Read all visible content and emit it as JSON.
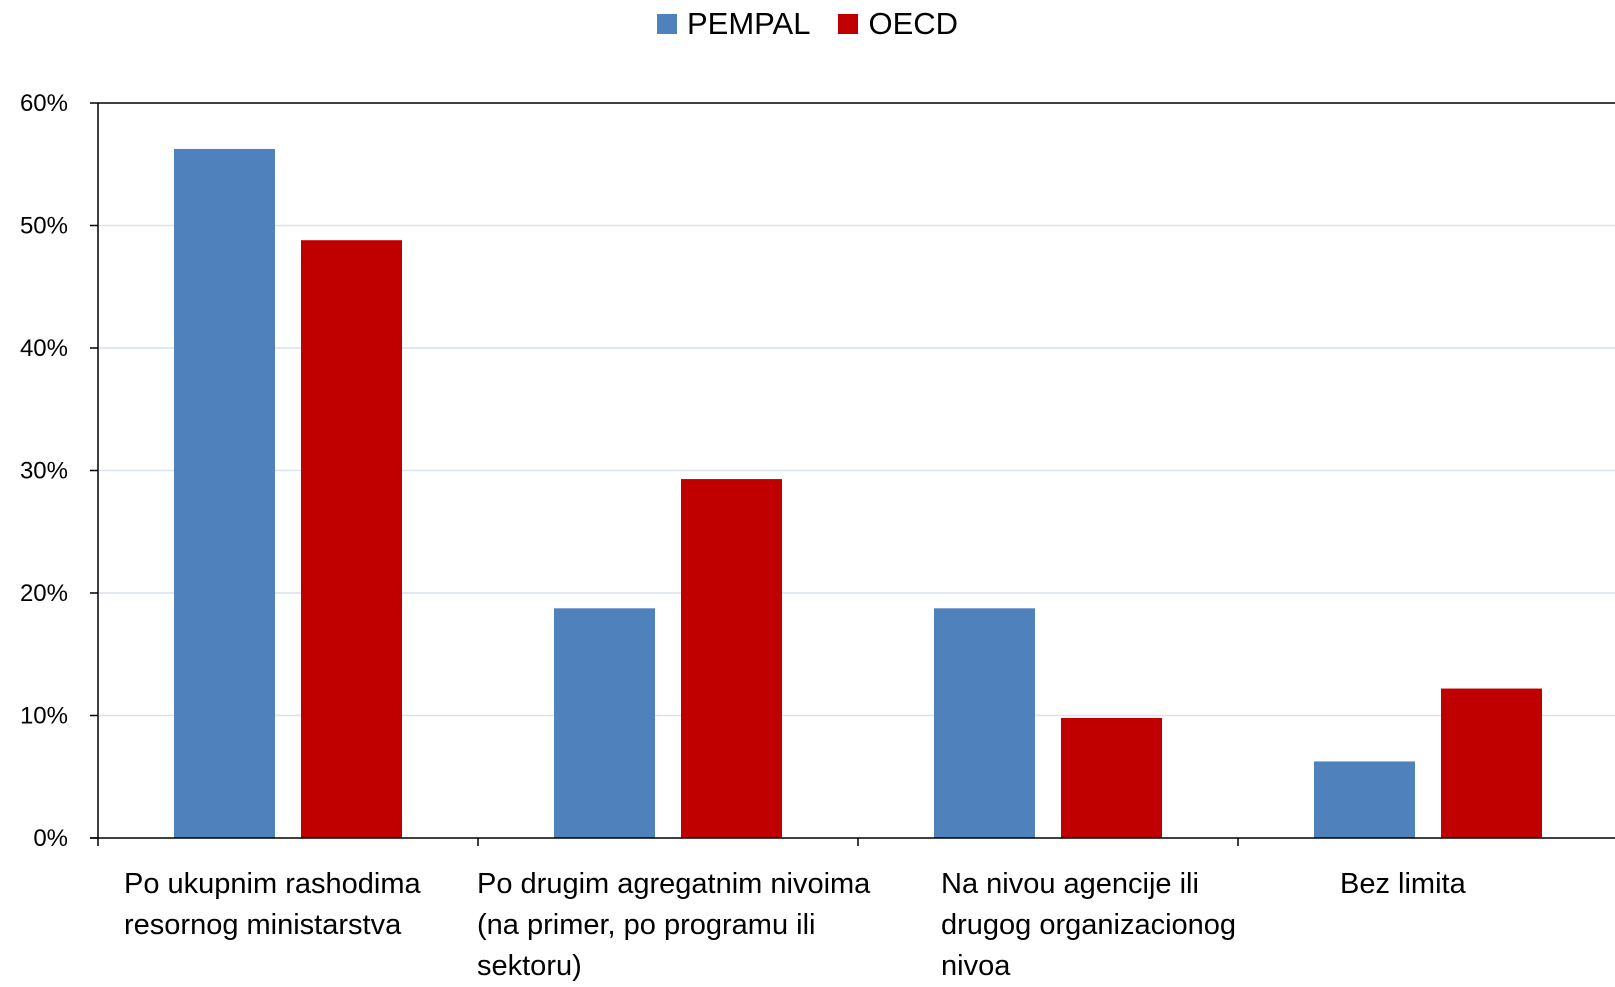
{
  "chart_data": {
    "type": "bar",
    "categories": [
      "Po ukupnim rashodima resornog ministarstva",
      "Po drugim agregatnim nivoima (na primer, po programu ili sektoru)",
      "Na nivou agencije ili drugog organizacionog nivoa",
      "Bez limita"
    ],
    "category_lines": [
      "Po ukupnim rashodima\nresornog ministarstva",
      "Po drugim agregatnim nivoima\n(na primer, po programu ili\nsektoru)",
      "Na nivou agencije ili\ndrugog organizacionog\nnivoa",
      "Bez limita"
    ],
    "series": [
      {
        "name": "PEMPAL",
        "color": "#4F81BD",
        "values": [
          56.25,
          18.75,
          18.75,
          6.25
        ]
      },
      {
        "name": "OECD",
        "color": "#C00000",
        "values": [
          48.8,
          29.3,
          9.8,
          12.2
        ]
      }
    ],
    "y_ticks": [
      "0%",
      "10%",
      "20%",
      "30%",
      "40%",
      "50%",
      "60%"
    ],
    "ylim": [
      0,
      60
    ],
    "ylabel": "",
    "xlabel": "",
    "title": "",
    "grid": true,
    "legend_position": "top-center"
  },
  "colors": {
    "gridline": "#D9E1EA",
    "axis": "#000000"
  }
}
